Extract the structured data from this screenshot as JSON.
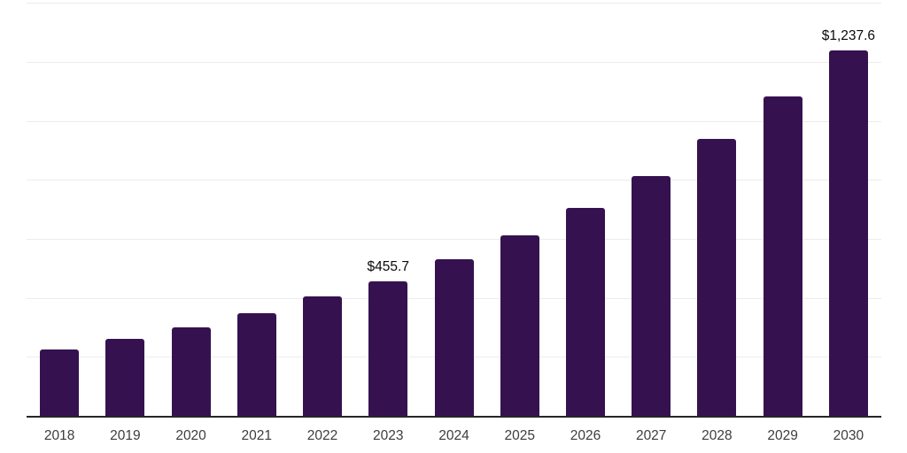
{
  "chart_data": {
    "type": "bar",
    "title": "",
    "xlabel": "",
    "ylabel": "",
    "categories": [
      "2018",
      "2019",
      "2020",
      "2021",
      "2022",
      "2023",
      "2024",
      "2025",
      "2026",
      "2027",
      "2028",
      "2029",
      "2030"
    ],
    "values": [
      224,
      262,
      301,
      349,
      404,
      455.7,
      530,
      611,
      704,
      812,
      938,
      1082,
      1237.6
    ],
    "annotations": [
      {
        "category": "2023",
        "text": "$455.7"
      },
      {
        "category": "2030",
        "text": "$1,237.6"
      }
    ],
    "ylim": [
      0,
      1400
    ],
    "gridline_step": 200,
    "grid": "horizontal-only",
    "y_axis_tick_labels": "none",
    "legend_position": "none",
    "bar_color": "#35124F",
    "gridline_color": "#ececec",
    "axis_line_color": "#262626",
    "tick_label_color": "#3d3d3d",
    "data_label_color": "#0a0a0a"
  }
}
